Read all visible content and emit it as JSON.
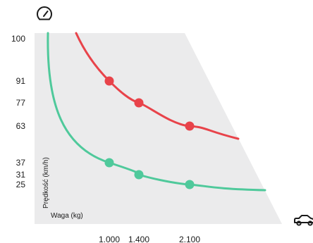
{
  "chart_data": {
    "type": "line",
    "xlabel": "Waga (kg)",
    "ylabel": "Prędkość (km/h)",
    "x_ticks": [
      1000,
      1400,
      2100
    ],
    "x_tick_labels": [
      "1.000",
      "1.400",
      "2.100"
    ],
    "y_ticks": [
      25,
      31,
      37,
      63,
      77,
      91,
      100
    ],
    "y_tick_labels": [
      "25",
      "31",
      "37",
      "63",
      "77",
      "91",
      "100"
    ],
    "grid": false,
    "legend": "none",
    "top_icon": "speedometer-icon",
    "right_icon": "car-icon",
    "series": [
      {
        "color": "#e8434a",
        "points": [
          {
            "x": 1000,
            "y": 91
          },
          {
            "x": 1400,
            "y": 77
          },
          {
            "x": 2100,
            "y": 63
          }
        ]
      },
      {
        "color": "#4fc99b",
        "points": [
          {
            "x": 1000,
            "y": 37
          },
          {
            "x": 1400,
            "y": 31
          },
          {
            "x": 2100,
            "y": 25
          }
        ]
      }
    ],
    "area_color": "#ebebec"
  }
}
